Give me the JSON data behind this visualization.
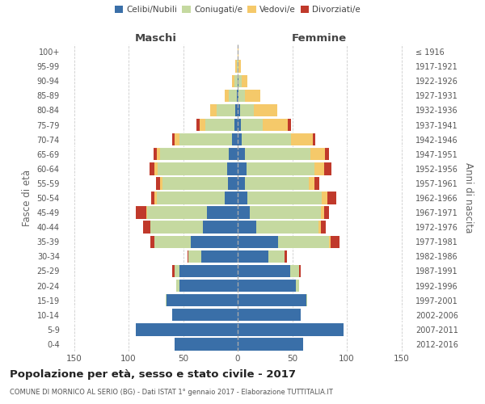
{
  "age_groups": [
    "0-4",
    "5-9",
    "10-14",
    "15-19",
    "20-24",
    "25-29",
    "30-34",
    "35-39",
    "40-44",
    "45-49",
    "50-54",
    "55-59",
    "60-64",
    "65-69",
    "70-74",
    "75-79",
    "80-84",
    "85-89",
    "90-94",
    "95-99",
    "100+"
  ],
  "birth_years": [
    "2012-2016",
    "2007-2011",
    "2002-2006",
    "1997-2001",
    "1992-1996",
    "1987-1991",
    "1982-1986",
    "1977-1981",
    "1972-1976",
    "1967-1971",
    "1962-1966",
    "1957-1961",
    "1952-1956",
    "1947-1951",
    "1942-1946",
    "1937-1941",
    "1932-1936",
    "1927-1931",
    "1922-1926",
    "1917-1921",
    "≤ 1916"
  ],
  "maschi": {
    "celibi": [
      58,
      93,
      60,
      65,
      53,
      53,
      33,
      43,
      32,
      28,
      12,
      9,
      10,
      8,
      5,
      3,
      2,
      1,
      0,
      0,
      0
    ],
    "coniugati": [
      0,
      0,
      0,
      1,
      3,
      5,
      12,
      33,
      48,
      55,
      62,
      60,
      63,
      63,
      48,
      27,
      17,
      7,
      3,
      1,
      0
    ],
    "vedovi": [
      0,
      0,
      0,
      0,
      0,
      0,
      0,
      0,
      0,
      1,
      2,
      2,
      3,
      3,
      5,
      5,
      6,
      4,
      2,
      1,
      0
    ],
    "divorziati": [
      0,
      0,
      0,
      0,
      0,
      2,
      1,
      4,
      7,
      9,
      3,
      4,
      5,
      3,
      2,
      3,
      0,
      0,
      0,
      0,
      0
    ]
  },
  "femmine": {
    "nubili": [
      60,
      97,
      58,
      63,
      53,
      48,
      28,
      37,
      17,
      11,
      9,
      7,
      8,
      7,
      4,
      3,
      2,
      1,
      1,
      0,
      0
    ],
    "coniugate": [
      0,
      0,
      0,
      1,
      3,
      8,
      15,
      47,
      57,
      65,
      68,
      58,
      62,
      60,
      45,
      20,
      13,
      6,
      3,
      1,
      0
    ],
    "vedove": [
      0,
      0,
      0,
      0,
      0,
      0,
      0,
      1,
      2,
      3,
      5,
      5,
      9,
      13,
      20,
      23,
      21,
      14,
      5,
      2,
      1
    ],
    "divorziate": [
      0,
      0,
      0,
      0,
      0,
      2,
      2,
      8,
      5,
      5,
      8,
      5,
      7,
      4,
      2,
      3,
      0,
      0,
      0,
      0,
      0
    ]
  },
  "colors": {
    "celibi": "#3a6fa8",
    "coniugati": "#c5d9a0",
    "vedovi": "#f5c96a",
    "divorziati": "#c0392b"
  },
  "xlim": 160,
  "title": "Popolazione per età, sesso e stato civile - 2017",
  "subtitle": "COMUNE DI MORNICO AL SERIO (BG) - Dati ISTAT 1° gennaio 2017 - Elaborazione TUTTITALIA.IT",
  "ylabel_left": "Fasce di età",
  "ylabel_right": "Anni di nascita",
  "xlabel_left": "Maschi",
  "xlabel_right": "Femmine"
}
